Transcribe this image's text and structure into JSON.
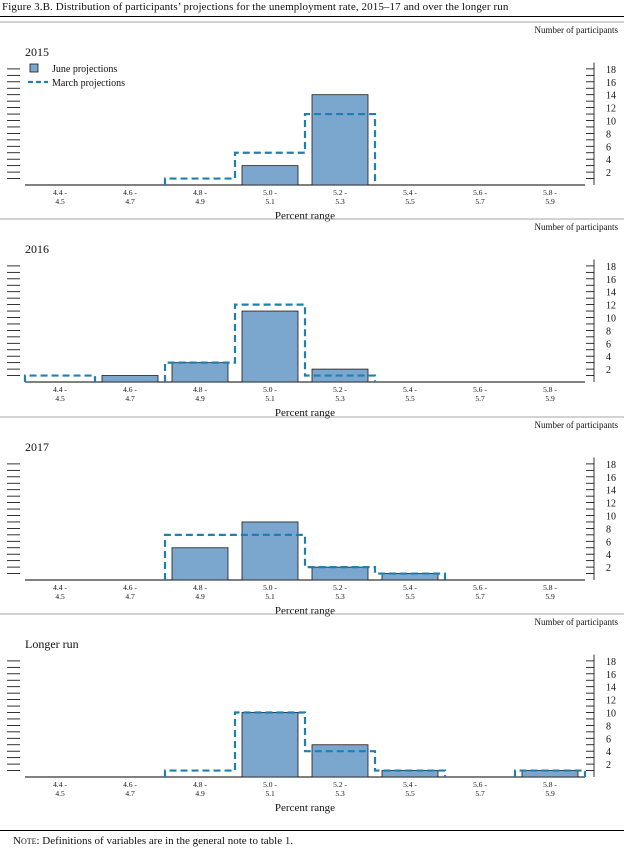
{
  "figure_title": "Figure 3.B. Distribution of participants’ projections for the unemployment rate, 2015–17 and over the longer run",
  "note_label": "Note",
  "note_text": ": Definitions of variables are in the general note to table 1.",
  "colors": {
    "june_fill": "#7ba7cf",
    "march_line": "#1f7fb3",
    "axis": "#000000",
    "rule": "#888888"
  },
  "chart_data": [
    {
      "type": "bar",
      "title": "2015",
      "categories": [
        "4.4 - 4.5",
        "4.6 - 4.7",
        "4.8 - 4.9",
        "5.0 - 5.1",
        "5.2 - 5.3",
        "5.4 - 5.5",
        "5.6 - 5.7",
        "5.8 - 5.9"
      ],
      "category_lines": [
        [
          "4.4 -",
          "4.5"
        ],
        [
          "4.6 -",
          "4.7"
        ],
        [
          "4.8 -",
          "4.9"
        ],
        [
          "5.0 -",
          "5.1"
        ],
        [
          "5.2 -",
          "5.3"
        ],
        [
          "5.4 -",
          "5.5"
        ],
        [
          "5.6 -",
          "5.7"
        ],
        [
          "5.8 -",
          "5.9"
        ]
      ],
      "series": [
        {
          "name": "June projections",
          "style": "bar",
          "values": [
            0,
            0,
            0,
            3,
            14,
            0,
            0,
            0
          ]
        },
        {
          "name": "March projections",
          "style": "dashed-step",
          "values": [
            0,
            0,
            1,
            5,
            11,
            0,
            0,
            0
          ]
        }
      ],
      "xlabel": "Percent range",
      "ylabel": "Number of participants",
      "yticks": [
        2,
        4,
        6,
        8,
        10,
        12,
        14,
        16,
        18
      ],
      "ylim": [
        0,
        19
      ],
      "legend": "top-left",
      "grid": false
    },
    {
      "type": "bar",
      "title": "2016",
      "categories": [
        "4.4 - 4.5",
        "4.6 - 4.7",
        "4.8 - 4.9",
        "5.0 - 5.1",
        "5.2 - 5.3",
        "5.4 - 5.5",
        "5.6 - 5.7",
        "5.8 - 5.9"
      ],
      "category_lines": [
        [
          "4.4 -",
          "4.5"
        ],
        [
          "4.6 -",
          "4.7"
        ],
        [
          "4.8 -",
          "4.9"
        ],
        [
          "5.0 -",
          "5.1"
        ],
        [
          "5.2 -",
          "5.3"
        ],
        [
          "5.4 -",
          "5.5"
        ],
        [
          "5.6 -",
          "5.7"
        ],
        [
          "5.8 -",
          "5.9"
        ]
      ],
      "series": [
        {
          "name": "June projections",
          "style": "bar",
          "values": [
            0,
            1,
            3,
            11,
            2,
            0,
            0,
            0
          ]
        },
        {
          "name": "March projections",
          "style": "dashed-step",
          "values": [
            1,
            0,
            3,
            12,
            1,
            0,
            0,
            0
          ]
        }
      ],
      "xlabel": "Percent range",
      "ylabel": "Number of participants",
      "yticks": [
        2,
        4,
        6,
        8,
        10,
        12,
        14,
        16,
        18
      ],
      "ylim": [
        0,
        19
      ],
      "grid": false
    },
    {
      "type": "bar",
      "title": "2017",
      "categories": [
        "4.4 - 4.5",
        "4.6 - 4.7",
        "4.8 - 4.9",
        "5.0 - 5.1",
        "5.2 - 5.3",
        "5.4 - 5.5",
        "5.6 - 5.7",
        "5.8 - 5.9"
      ],
      "category_lines": [
        [
          "4.4 -",
          "4.5"
        ],
        [
          "4.6 -",
          "4.7"
        ],
        [
          "4.8 -",
          "4.9"
        ],
        [
          "5.0 -",
          "5.1"
        ],
        [
          "5.2 -",
          "5.3"
        ],
        [
          "5.4 -",
          "5.5"
        ],
        [
          "5.6 -",
          "5.7"
        ],
        [
          "5.8 -",
          "5.9"
        ]
      ],
      "series": [
        {
          "name": "June projections",
          "style": "bar",
          "values": [
            0,
            0,
            5,
            9,
            2,
            1,
            0,
            0
          ]
        },
        {
          "name": "March projections",
          "style": "dashed-step",
          "values": [
            0,
            0,
            7,
            7,
            2,
            1,
            0,
            0
          ]
        }
      ],
      "xlabel": "Percent range",
      "ylabel": "Number of participants",
      "yticks": [
        2,
        4,
        6,
        8,
        10,
        12,
        14,
        16,
        18
      ],
      "ylim": [
        0,
        19
      ],
      "grid": false
    },
    {
      "type": "bar",
      "title": "Longer run",
      "categories": [
        "4.4 - 4.5",
        "4.6 - 4.7",
        "4.8 - 4.9",
        "5.0 - 5.1",
        "5.2 - 5.3",
        "5.4 - 5.5",
        "5.6 - 5.7",
        "5.8 - 5.9"
      ],
      "category_lines": [
        [
          "4.4 -",
          "4.5"
        ],
        [
          "4.6 -",
          "4.7"
        ],
        [
          "4.8 -",
          "4.9"
        ],
        [
          "5.0 -",
          "5.1"
        ],
        [
          "5.2 -",
          "5.3"
        ],
        [
          "5.4 -",
          "5.5"
        ],
        [
          "5.6 -",
          "5.7"
        ],
        [
          "5.8 -",
          "5.9"
        ]
      ],
      "series": [
        {
          "name": "June projections",
          "style": "bar",
          "values": [
            0,
            0,
            0,
            10,
            5,
            1,
            0,
            1
          ]
        },
        {
          "name": "March projections",
          "style": "dashed-step",
          "values": [
            0,
            0,
            1,
            10,
            4,
            1,
            0,
            1
          ]
        }
      ],
      "xlabel": "Percent range",
      "ylabel": "Number of participants",
      "yticks": [
        2,
        4,
        6,
        8,
        10,
        12,
        14,
        16,
        18
      ],
      "ylim": [
        0,
        19
      ],
      "grid": false
    }
  ]
}
